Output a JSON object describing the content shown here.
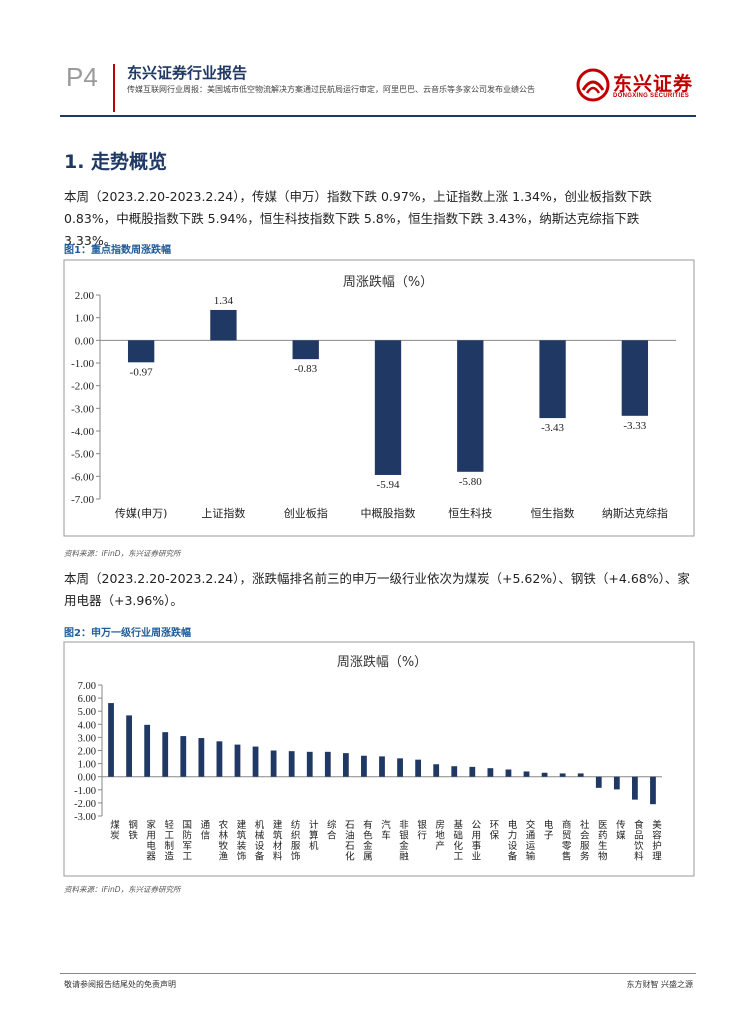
{
  "header": {
    "page_number": "P4",
    "report_title": "东兴证券行业报告",
    "report_subtitle": "传媒互联网行业周报：美国城市低空物流解决方案通过民航局运行审定，阿里巴巴、云音乐等多家公司发布业绩公告",
    "logo_text": "东兴证券",
    "logo_en": "DONGXING SECURITIES",
    "brand_color": "#c00000",
    "navy_color": "#1f3864"
  },
  "section": {
    "title": "1. 走势概览"
  },
  "paragraph1": "本周（2023.2.20-2023.2.24），传媒（申万）指数下跌 0.97%，上证指数上涨 1.34%，创业板指数下跌 0.83%，中概股指数下跌 5.94%，恒生科技指数下跌 5.8%，恒生指数下跌 3.43%，纳斯达克综指下跌 3.33%。",
  "figure1": {
    "title": "图1：重点指数周涨跌幅",
    "source": "资料来源：iFinD，东兴证券研究所"
  },
  "paragraph2": "本周（2023.2.20-2023.2.24），涨跌幅排名前三的申万一级行业依次为煤炭（+5.62%）、钢铁（+4.68%）、家用电器（+3.96%）。",
  "figure2": {
    "title": "图2：申万一级行业周涨跌幅",
    "source": "资料来源：iFinD，东兴证券研究所"
  },
  "chart_data": [
    {
      "type": "bar",
      "title": "周涨跌幅（%）",
      "categories": [
        "传媒(申万)",
        "上证指数",
        "创业板指",
        "中概股指数",
        "恒生科技",
        "恒生指数",
        "纳斯达克综指"
      ],
      "values": [
        -0.97,
        1.34,
        -0.83,
        -5.94,
        -5.8,
        -3.43,
        -3.33
      ],
      "data_labels": [
        "-0.97",
        "1.34",
        "-0.83",
        "-5.94",
        "-5.80",
        "-3.43",
        "-3.33"
      ],
      "ylim": [
        -7.0,
        2.0
      ],
      "yticks": [
        "2.00",
        "1.00",
        "0.00",
        "-1.00",
        "-2.00",
        "-3.00",
        "-4.00",
        "-5.00",
        "-6.00",
        "-7.00"
      ],
      "ytick_values": [
        2,
        1,
        0,
        -1,
        -2,
        -3,
        -4,
        -5,
        -6,
        -7
      ],
      "bar_color": "#1f3864",
      "grid": false
    },
    {
      "type": "bar",
      "title": "周涨跌幅（%）",
      "categories": [
        "煤炭",
        "钢铁",
        "家用电器",
        "轻工制造",
        "国防军工",
        "通信",
        "农林牧渔",
        "建筑装饰",
        "机械设备",
        "建筑材料",
        "纺织服饰",
        "计算机",
        "综合",
        "石油石化",
        "有色金属",
        "汽车",
        "非银金融",
        "银行",
        "房地产",
        "基础化工",
        "公用事业",
        "环保",
        "电力设备",
        "交通运输",
        "电子",
        "商贸零售",
        "社会服务",
        "医药生物",
        "传媒",
        "食品饮料",
        "美容护理"
      ],
      "values": [
        5.62,
        4.68,
        3.96,
        3.4,
        3.1,
        2.95,
        2.7,
        2.45,
        2.3,
        2.0,
        1.95,
        1.9,
        1.9,
        1.8,
        1.6,
        1.55,
        1.4,
        1.3,
        0.95,
        0.8,
        0.75,
        0.65,
        0.55,
        0.4,
        0.3,
        0.25,
        0.25,
        -0.85,
        -0.97,
        -1.75,
        -2.1
      ],
      "ylim": [
        -3.0,
        7.0
      ],
      "yticks": [
        "7.00",
        "6.00",
        "5.00",
        "4.00",
        "3.00",
        "2.00",
        "1.00",
        "0.00",
        "-1.00",
        "-2.00",
        "-3.00"
      ],
      "ytick_values": [
        7,
        6,
        5,
        4,
        3,
        2,
        1,
        0,
        -1,
        -2,
        -3
      ],
      "bar_color": "#1f3864",
      "grid": false
    }
  ],
  "footer": {
    "left": "敬请参阅报告结尾处的免责声明",
    "right": "东方财智 兴盛之源"
  }
}
